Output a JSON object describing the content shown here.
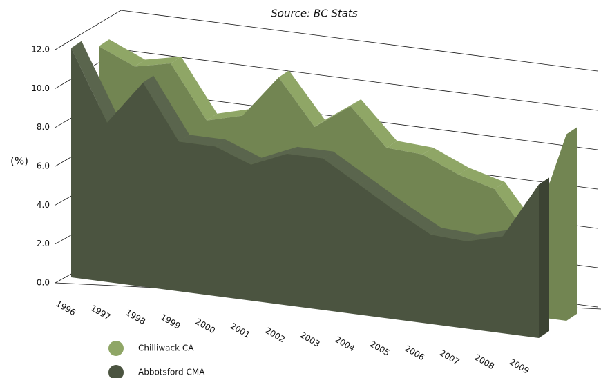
{
  "chart_data": {
    "type": "area3d",
    "title": "Source: BC Stats",
    "y_label": "(%)",
    "categories": [
      "1996",
      "1997",
      "1998",
      "1999",
      "2000",
      "2001",
      "2002",
      "2003",
      "2004",
      "2005",
      "2006",
      "2007",
      "2008",
      "2009"
    ],
    "series": [
      {
        "name": "Chilliwack CA",
        "color": "#8fa666",
        "values": [
          11.0,
          10.2,
          10.6,
          7.9,
          8.4,
          10.6,
          8.3,
          9.6,
          7.7,
          7.6,
          6.8,
          6.3,
          4.0,
          9.6
        ]
      },
      {
        "name": "Abbotsford CMA",
        "color": "#4b5440",
        "values": [
          11.8,
          8.2,
          10.5,
          7.7,
          7.7,
          7.0,
          7.8,
          7.8,
          6.7,
          5.6,
          4.6,
          4.5,
          5.0,
          7.9
        ]
      }
    ],
    "ylim": [
      0,
      12
    ],
    "yticks": [
      {
        "value": 0,
        "label": "0.0"
      },
      {
        "value": 2,
        "label": "2.0"
      },
      {
        "value": 4,
        "label": "4.0"
      },
      {
        "value": 6,
        "label": "6.0"
      },
      {
        "value": 8,
        "label": "8.0"
      },
      {
        "value": 10,
        "label": "10.0"
      },
      {
        "value": 12,
        "label": "12.0"
      }
    ],
    "grid": true
  }
}
